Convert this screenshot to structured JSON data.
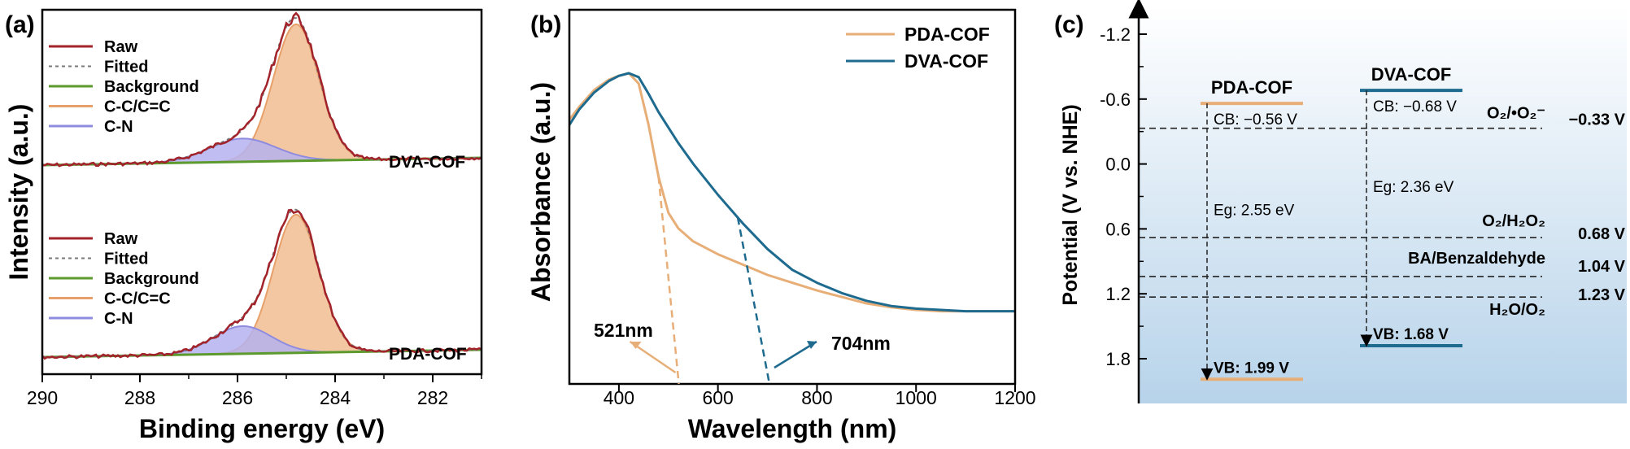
{
  "panels": {
    "a_label": "(a)",
    "b_label": "(b)",
    "c_label": "(c)"
  },
  "chart_data": [
    {
      "panel": "(a)",
      "type": "line",
      "xlabel": "Binding energy (eV)",
      "ylabel": "Intensity (a.u.)",
      "xlim": [
        290,
        281
      ],
      "x_ticks": [
        "290",
        "288",
        "286",
        "284",
        "282"
      ],
      "x_reversed": true,
      "legend": [
        "Raw",
        "Fitted",
        "Background",
        "C-C/C=C",
        "C-N"
      ],
      "legend_placement": "top-left",
      "colors": {
        "raw": "#a3232b",
        "fitted": "#7a7a7a",
        "background": "#5c9a2e",
        "cc": "#f3c7a1",
        "cc_edge": "#e8a06a",
        "cn": "#b4b2ee",
        "cn_edge": "#8f8ce0"
      },
      "samples": [
        {
          "name": "DVA-COF",
          "peaks": [
            {
              "component": "C-C/C=C",
              "center_ev": 284.8,
              "height": 1.0,
              "fwhm_ev": 1.1
            },
            {
              "component": "C-N",
              "center_ev": 285.9,
              "height": 0.17,
              "fwhm_ev": 1.6
            }
          ]
        },
        {
          "name": "PDA-COF",
          "peaks": [
            {
              "component": "C-C/C=C",
              "center_ev": 284.8,
              "height": 1.0,
              "fwhm_ev": 1.1
            },
            {
              "component": "C-N",
              "center_ev": 285.9,
              "height": 0.2,
              "fwhm_ev": 1.4
            }
          ]
        }
      ]
    },
    {
      "panel": "(b)",
      "type": "line",
      "xlabel": "Wavelength (nm)",
      "ylabel": "Absorbance (a.u.)",
      "xlim": [
        300,
        1200
      ],
      "x_ticks": [
        "400",
        "600",
        "800",
        "1000",
        "1200"
      ],
      "legend_placement": "top-right",
      "series": [
        {
          "name": "PDA-COF",
          "color": "#e8ae78",
          "x": [
            300,
            320,
            350,
            380,
            400,
            420,
            440,
            460,
            480,
            500,
            520,
            550,
            600,
            650,
            700,
            750,
            800,
            850,
            900,
            950,
            1000,
            1050,
            1100,
            1150,
            1200
          ],
          "y": [
            0.82,
            0.87,
            0.935,
            0.975,
            0.99,
            1.0,
            0.96,
            0.8,
            0.6,
            0.46,
            0.4,
            0.35,
            0.3,
            0.26,
            0.22,
            0.19,
            0.16,
            0.135,
            0.11,
            0.095,
            0.085,
            0.08,
            0.08,
            0.08,
            0.08
          ]
        },
        {
          "name": "DVA-COF",
          "color": "#1e6b8f",
          "x": [
            300,
            320,
            350,
            380,
            400,
            420,
            440,
            460,
            480,
            500,
            520,
            550,
            600,
            650,
            700,
            750,
            800,
            850,
            900,
            950,
            1000,
            1050,
            1100,
            1150,
            1200
          ],
          "y": [
            0.8,
            0.86,
            0.925,
            0.97,
            0.99,
            1.0,
            0.985,
            0.92,
            0.85,
            0.79,
            0.73,
            0.65,
            0.53,
            0.42,
            0.32,
            0.24,
            0.19,
            0.15,
            0.12,
            0.1,
            0.09,
            0.085,
            0.08,
            0.08,
            0.08
          ]
        }
      ],
      "annotations": [
        {
          "text": "521nm",
          "x": 521,
          "series": "PDA-COF"
        },
        {
          "text": "704nm",
          "x": 704,
          "series": "DVA-COF"
        }
      ]
    },
    {
      "panel": "(c)",
      "type": "diagram",
      "ylabel": "Potential (V vs. NHE)",
      "ylim": [
        -1.5,
        2.05
      ],
      "y_ticks": [
        "-1.2",
        "-0.6",
        "0.0",
        "0.6",
        "1.2",
        "1.8"
      ],
      "y_reversed": true,
      "materials": [
        {
          "name": "PDA-COF",
          "cb": -0.56,
          "vb": 1.99,
          "cb_label": "CB: −0.56 V",
          "vb_label": "VB: 1.99 V",
          "eg_label": "Eg: 2.55 eV",
          "color": "#e8ae78"
        },
        {
          "name": "DVA-COF",
          "cb": -0.68,
          "vb": 1.68,
          "cb_label": "CB: −0.68 V",
          "vb_label": "VB: 1.68 V",
          "eg_label": "Eg: 2.36 eV",
          "color": "#1e6b8f"
        }
      ],
      "reference_levels": [
        {
          "name": "O₂/•O₂⁻",
          "value": -0.33,
          "value_label": "−0.33 V"
        },
        {
          "name": "O₂/H₂O₂",
          "value": 0.68,
          "value_label": "0.68 V"
        },
        {
          "name": "BA/Benzaldehyde",
          "value": 1.04,
          "value_label": "1.04 V"
        },
        {
          "name": "H₂O/O₂",
          "value": 1.23,
          "value_label": "1.23 V"
        }
      ],
      "background_gradient": [
        "#ffffff",
        "#b7d3ea"
      ]
    }
  ]
}
